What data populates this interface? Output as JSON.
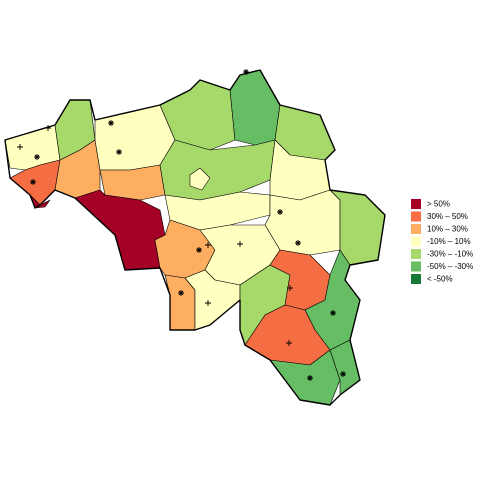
{
  "legend": [
    {
      "label": ">  50%",
      "color": "#a50026"
    },
    {
      "label": "30%  –  50%",
      "color": "#f46d43"
    },
    {
      "label": "10%  –  30%",
      "color": "#fdae61"
    },
    {
      "label": "-10%  –  10%",
      "color": "#ffffbf"
    },
    {
      "label": "-30%  –  -10%",
      "color": "#a6d96a"
    },
    {
      "label": "-50%  –  -30%",
      "color": "#66bd63"
    },
    {
      "label": "< -50%",
      "color": "#1a7837"
    }
  ]
}
